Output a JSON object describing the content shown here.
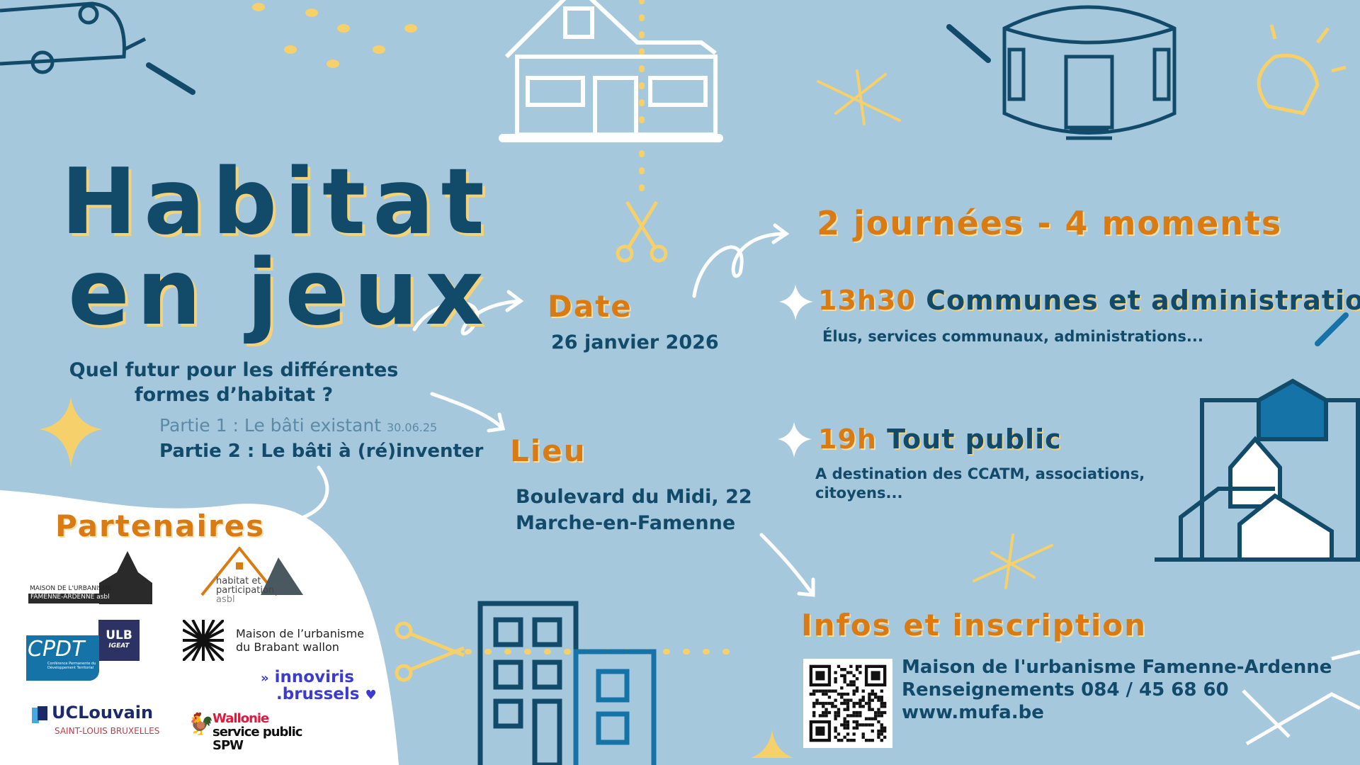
{
  "title": {
    "line1": "Habitat",
    "line2": "en jeux"
  },
  "subtitle": {
    "line1": "Quel futur pour les différentes",
    "line2": "formes d’habitat ?"
  },
  "parts": {
    "part1": "Partie 1 : Le bâti existant",
    "part1_date": "30.06.25",
    "part2": "Partie 2 : Le bâti à (ré)inventer"
  },
  "date": {
    "label": "Date",
    "value": "26 janvier 2026"
  },
  "lieu": {
    "label": "Lieu",
    "line1": "Boulevard du Midi, 22",
    "line2": "Marche-en-Famenne"
  },
  "program": {
    "heading": "2 journées - 4 moments",
    "moments": [
      {
        "time": "13h30",
        "title": "Communes et administrations",
        "desc": "Élus, services communaux, administrations..."
      },
      {
        "time": "19h",
        "title": "Tout public",
        "desc_line1": "A destination des CCATM, associations,",
        "desc_line2": "citoyens..."
      }
    ]
  },
  "infos": {
    "heading": "Infos et inscription",
    "org": "Maison de l'urbanisme Famenne-Ardenne",
    "phone": "Renseignements 084 / 45 68 60",
    "website": "www.mufa.be"
  },
  "partners": {
    "heading": "Partenaires",
    "logos": {
      "mufa": {
        "line1": "MAISON DE L'URBANISME",
        "line2": "FAMENNE-ARDENNE asbl"
      },
      "hep": {
        "line1": "habitat et",
        "line2": "participation",
        "line3": "asbl"
      },
      "cpdt": {
        "name": "CPDT",
        "desc": "Conférence Permanente du Développement Territorial",
        "ulb": "ULB",
        "igeat": "IGEAT"
      },
      "mubw": {
        "line1": "Maison de l’urbanisme",
        "line2": "du Brabant wallon"
      },
      "innoviris": {
        "line1": "innoviris",
        "line2": ".brussels"
      },
      "uclouvain": {
        "name": "UCLouvain",
        "sub": "SAINT-LOUIS BRUXELLES"
      },
      "wallonie": {
        "line1": "Wallonie",
        "line2": "service public",
        "line3": "SPW"
      }
    }
  },
  "colors": {
    "background": "#a5c8dc",
    "navy": "#124a6a",
    "orange": "#d97a12",
    "yellow": "#f6d06a",
    "white": "#ffffff"
  }
}
